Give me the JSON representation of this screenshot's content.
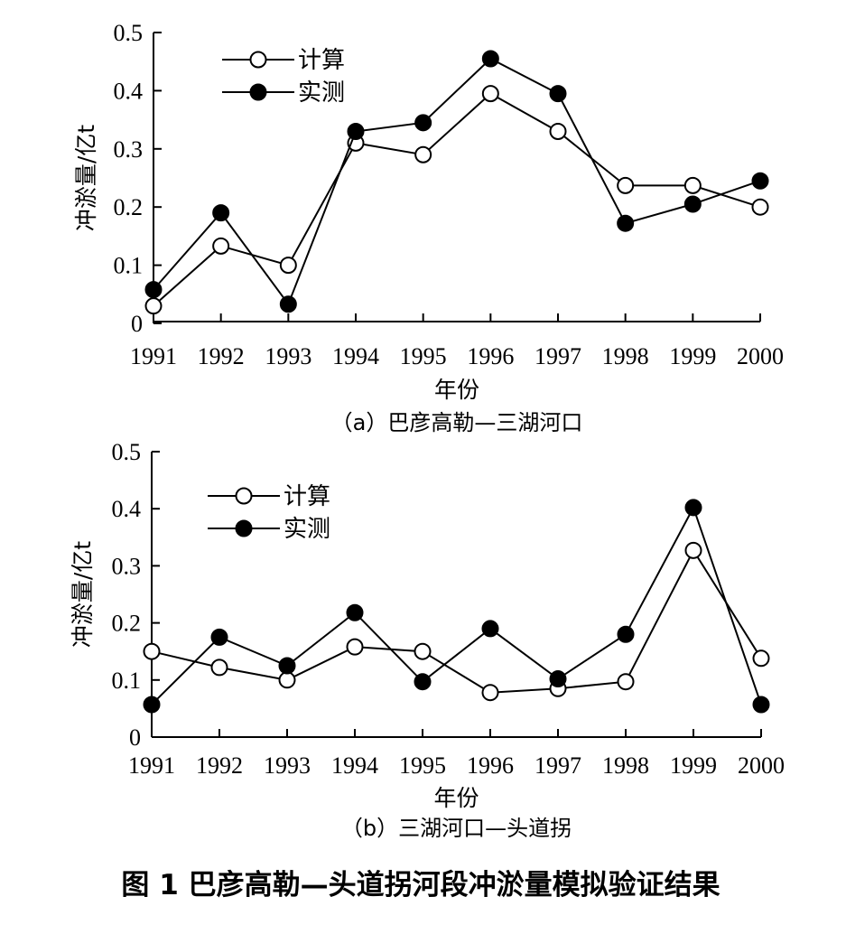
{
  "figure_title": "图 1    巴彦高勒—头道拐河段冲淤量模拟验证结果",
  "chart_data": [
    {
      "type": "line",
      "caption": "（a）巴彦高勒—三湖河口",
      "xlabel": "年份",
      "ylabel": "冲淤量/亿t",
      "ylim": [
        0,
        0.5
      ],
      "yticks": [
        "0",
        "0.1",
        "0.2",
        "0.3",
        "0.4",
        "0.5"
      ],
      "categories": [
        "1991",
        "1992",
        "1993",
        "1994",
        "1995",
        "1996",
        "1997",
        "1998",
        "1999",
        "2000"
      ],
      "legend_position": "top-left",
      "series": [
        {
          "name": "计算",
          "marker": "open-circle",
          "color": "#000000",
          "values": [
            0.03,
            0.133,
            0.1,
            0.31,
            0.29,
            0.395,
            0.33,
            0.237,
            0.237,
            0.2
          ]
        },
        {
          "name": "实测",
          "marker": "filled-circle",
          "color": "#000000",
          "values": [
            0.058,
            0.19,
            0.033,
            0.33,
            0.345,
            0.455,
            0.395,
            0.172,
            0.205,
            0.245
          ]
        }
      ]
    },
    {
      "type": "line",
      "caption": "（b）三湖河口—头道拐",
      "xlabel": "年份",
      "ylabel": "冲淤量/亿t",
      "ylim": [
        0,
        0.5
      ],
      "yticks": [
        "0",
        "0.1",
        "0.2",
        "0.3",
        "0.4",
        "0.5"
      ],
      "categories": [
        "1991",
        "1992",
        "1993",
        "1994",
        "1995",
        "1996",
        "1997",
        "1998",
        "1999",
        "2000"
      ],
      "legend_position": "top-left",
      "series": [
        {
          "name": "计算",
          "marker": "open-circle",
          "color": "#000000",
          "values": [
            0.15,
            0.122,
            0.1,
            0.158,
            0.15,
            0.078,
            0.085,
            0.097,
            0.327,
            0.138
          ]
        },
        {
          "name": "实测",
          "marker": "filled-circle",
          "color": "#000000",
          "values": [
            0.057,
            0.175,
            0.125,
            0.218,
            0.097,
            0.19,
            0.102,
            0.18,
            0.402,
            0.057
          ]
        }
      ]
    }
  ]
}
